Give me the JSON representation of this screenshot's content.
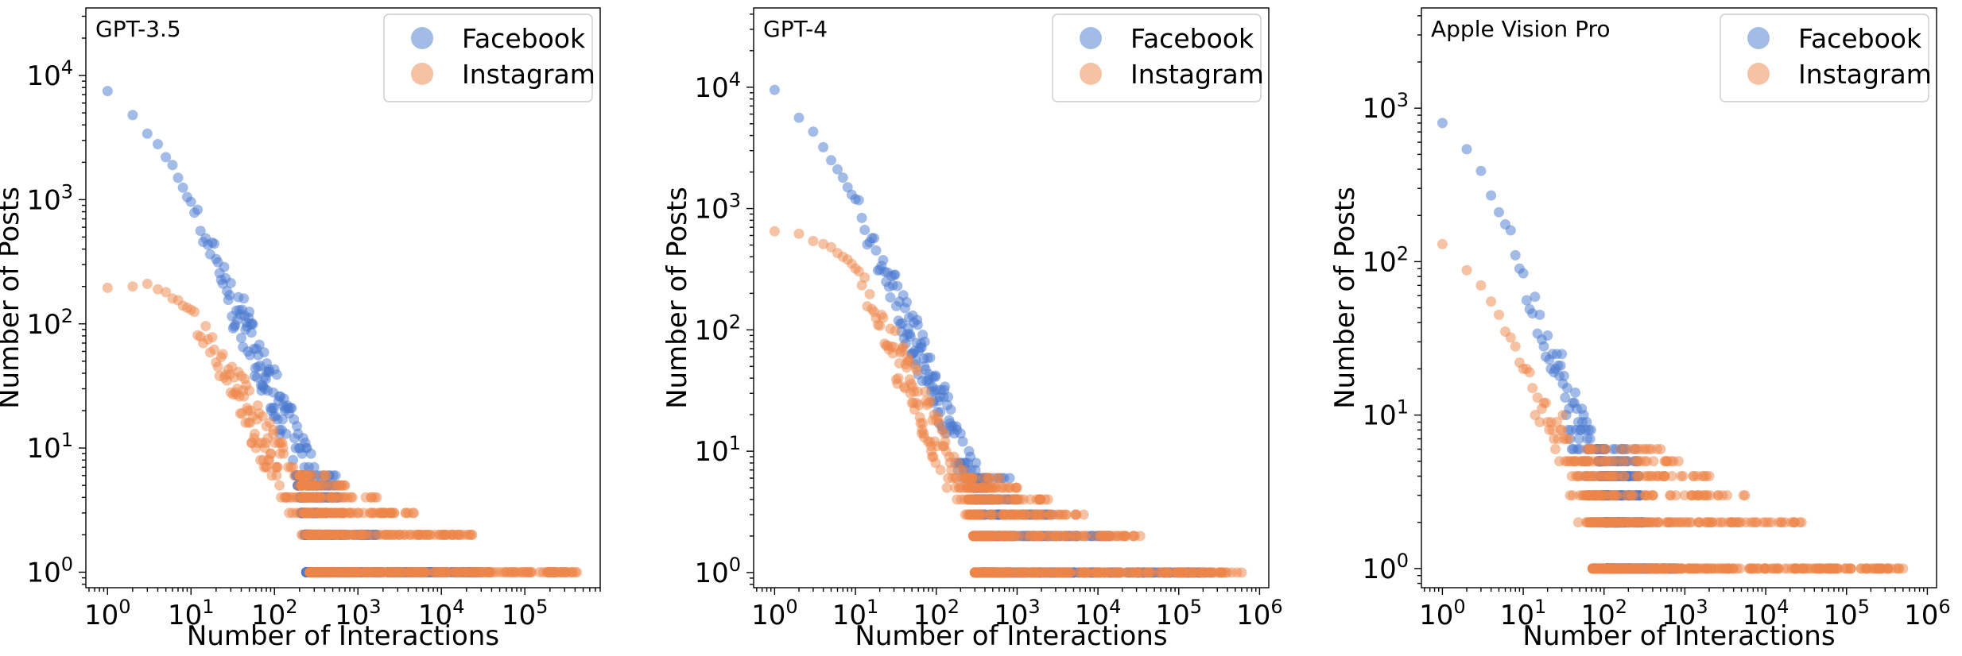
{
  "colors": {
    "facebook": "#4878D0",
    "instagram": "#EE854A"
  },
  "chart_data": [
    {
      "type": "scatter",
      "title": "GPT-3.5",
      "xlabel": "Number of Interactions",
      "ylabel": "Number of Posts",
      "x_scale": "log",
      "y_scale": "log",
      "xlim": [
        0.55,
        800000
      ],
      "ylim": [
        0.75,
        35000
      ],
      "x_ticks": [
        1,
        10,
        100,
        1000,
        10000,
        100000
      ],
      "y_ticks": [
        1,
        10,
        100,
        1000,
        10000
      ],
      "legend": {
        "position": "top-right",
        "entries": [
          "Facebook",
          "Instagram"
        ]
      },
      "series": [
        {
          "name": "Facebook",
          "color": "#4878D0",
          "slope": -1.52,
          "head": [
            [
              1,
              7500
            ],
            [
              2,
              4800
            ],
            [
              3,
              3400
            ],
            [
              4,
              2800
            ],
            [
              5,
              2200
            ],
            [
              6,
              1900
            ],
            [
              7,
              1500
            ],
            [
              8,
              1250
            ],
            [
              9,
              1050
            ]
          ],
          "knee": 200,
          "max_x": 30000
        },
        {
          "name": "Instagram",
          "color": "#EE854A",
          "slope": -1.2,
          "head": [
            [
              1,
              195
            ],
            [
              2,
              200
            ],
            [
              3,
              210
            ],
            [
              4,
              190
            ],
            [
              5,
              180
            ],
            [
              6,
              160
            ],
            [
              7,
              155
            ],
            [
              8,
              140
            ],
            [
              9,
              135
            ],
            [
              10,
              130
            ]
          ],
          "knee": 220,
          "max_x": 420000
        }
      ]
    },
    {
      "type": "scatter",
      "title": "GPT-4",
      "xlabel": "Number of Interactions",
      "ylabel": "Number of Posts",
      "x_scale": "log",
      "y_scale": "log",
      "xlim": [
        0.55,
        1300000
      ],
      "ylim": [
        0.75,
        45000
      ],
      "x_ticks": [
        1,
        10,
        100,
        1000,
        10000,
        100000,
        1000000
      ],
      "y_ticks": [
        1,
        10,
        100,
        1000,
        10000
      ],
      "legend": {
        "position": "top-right",
        "entries": [
          "Facebook",
          "Instagram"
        ]
      },
      "series": [
        {
          "name": "Facebook",
          "color": "#4878D0",
          "slope": -1.55,
          "head": [
            [
              1,
              9500
            ],
            [
              2,
              5600
            ],
            [
              3,
              4300
            ],
            [
              4,
              3200
            ],
            [
              5,
              2500
            ],
            [
              6,
              2100
            ],
            [
              7,
              1800
            ],
            [
              8,
              1500
            ],
            [
              9,
              1300
            ]
          ],
          "knee": 300,
          "max_x": 250000
        },
        {
          "name": "Instagram",
          "color": "#EE854A",
          "slope": -1.4,
          "head": [
            [
              1,
              650
            ],
            [
              2,
              620
            ],
            [
              3,
              540
            ],
            [
              4,
              510
            ],
            [
              5,
              480
            ],
            [
              6,
              430
            ],
            [
              7,
              400
            ],
            [
              8,
              380
            ],
            [
              9,
              350
            ],
            [
              10,
              320
            ]
          ],
          "knee": 250,
          "max_x": 600000
        }
      ]
    },
    {
      "type": "scatter",
      "title": "Apple Vision Pro",
      "xlabel": "Number of Interactions",
      "ylabel": "Number of Posts",
      "x_scale": "log",
      "y_scale": "log",
      "xlim": [
        0.55,
        1300000
      ],
      "ylim": [
        0.75,
        4500
      ],
      "x_ticks": [
        1,
        10,
        100,
        1000,
        10000,
        100000,
        1000000
      ],
      "y_ticks": [
        1,
        10,
        100,
        1000
      ],
      "legend": {
        "position": "top-right",
        "entries": [
          "Facebook",
          "Instagram"
        ]
      },
      "series": [
        {
          "name": "Facebook",
          "color": "#4878D0",
          "slope": -1.45,
          "head": [
            [
              1,
              800
            ],
            [
              2,
              540
            ],
            [
              3,
              390
            ],
            [
              4,
              270
            ],
            [
              5,
              210
            ],
            [
              6,
              175
            ],
            [
              7,
              160
            ],
            [
              8,
              110
            ],
            [
              9,
              90
            ]
          ],
          "knee": 90,
          "max_x": 800
        },
        {
          "name": "Instagram",
          "color": "#EE854A",
          "slope": -1.1,
          "head": [
            [
              1,
              130
            ],
            [
              2,
              88
            ],
            [
              3,
              70
            ],
            [
              4,
              55
            ],
            [
              5,
              45
            ],
            [
              6,
              35
            ],
            [
              7,
              32
            ],
            [
              8,
              28
            ],
            [
              9,
              22
            ],
            [
              10,
              20
            ]
          ],
          "knee": 60,
          "max_x": 500000
        }
      ]
    }
  ]
}
